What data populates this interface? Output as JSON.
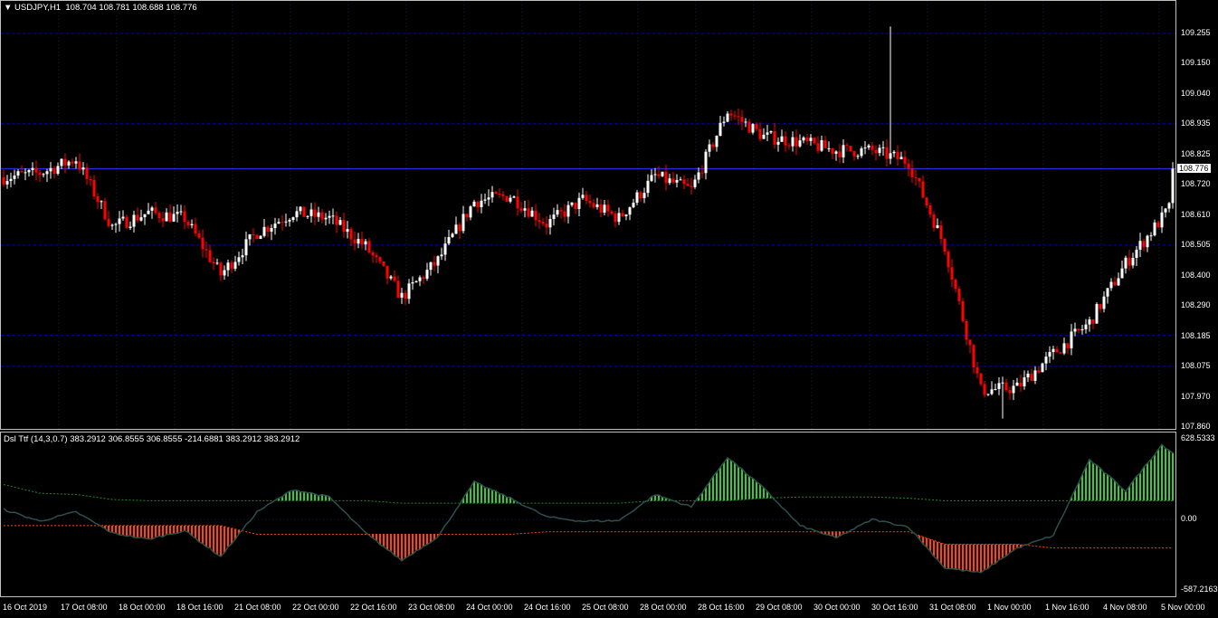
{
  "header": {
    "symbol": "USDJPY,H1",
    "ohlc": "108.704 108.781 108.688 108.776",
    "menu_icon": "triangle-down-icon"
  },
  "indicator": {
    "label": "Dsl Ttf (14,3,0.7) 383.2912 306.8555 306.8555 -214.6881 383.2912 383.2912"
  },
  "price_axis": [
    "109.255",
    "109.150",
    "109.040",
    "108.935",
    "108.825",
    "108.720",
    "108.610",
    "108.505",
    "108.400",
    "108.290",
    "108.185",
    "108.075",
    "107.970",
    "107.860"
  ],
  "current_price": "108.776",
  "indicator_axis": {
    "max": "628.5333",
    "zero": "0.00",
    "min": "-587.2163"
  },
  "time_axis": [
    "16 Oct 2019",
    "17 Oct 08:00",
    "18 Oct 00:00",
    "18 Oct 16:00",
    "21 Oct 08:00",
    "22 Oct 00:00",
    "22 Oct 16:00",
    "23 Oct 08:00",
    "24 Oct 00:00",
    "24 Oct 16:00",
    "25 Oct 08:00",
    "28 Oct 00:00",
    "28 Oct 16:00",
    "29 Oct 08:00",
    "30 Oct 00:00",
    "30 Oct 16:00",
    "31 Oct 08:00",
    "1 Nov 00:00",
    "1 Nov 16:00",
    "4 Nov 08:00",
    "5 Nov 00:00"
  ],
  "colors": {
    "bull": "#ffffff",
    "bear": "#ff0000",
    "grid": "#0000c8",
    "hist_up": "#32cd32",
    "hist_down": "#ff4500",
    "signal": "#2f4f4f",
    "level_up": "#228b22",
    "level_down": "#ff4500"
  },
  "chart_data": [
    {
      "type": "candlestick",
      "timeframe": "H1",
      "symbol": "USDJPY",
      "sample_every_bars": 10,
      "ylim": [
        107.86,
        109.255
      ],
      "close_samples": [
        108.745,
        108.76,
        108.81,
        108.57,
        108.62,
        108.6,
        108.4,
        108.55,
        108.62,
        108.6,
        108.5,
        108.32,
        108.45,
        108.66,
        108.68,
        108.58,
        108.665,
        108.6,
        108.75,
        108.7,
        108.98,
        108.89,
        108.87,
        108.84,
        108.84,
        108.8,
        108.5,
        107.99,
        108.0,
        108.12,
        108.23,
        108.44,
        108.6,
        108.776
      ],
      "spike_high": 109.28,
      "spike_low": 107.89
    },
    {
      "type": "line+histogram",
      "name": "Dsl Ttf (14,3,0.7)",
      "sample_every_bars": 10,
      "ylim": [
        -587.2163,
        628.5333
      ],
      "signal": [
        80,
        -15,
        60,
        -110,
        -160,
        -90,
        -300,
        60,
        240,
        180,
        -110,
        -330,
        -140,
        300,
        170,
        20,
        -15,
        -10,
        200,
        100,
        500,
        250,
        -50,
        -150,
        0,
        -60,
        -390,
        -430,
        -230,
        -130,
        480,
        230,
        600,
        383
      ],
      "upper_level": [
        280,
        210,
        200,
        160,
        150,
        150,
        150,
        150,
        150,
        150,
        150,
        130,
        130,
        130,
        130,
        130,
        130,
        130,
        150,
        150,
        150,
        170,
        180,
        180,
        180,
        170,
        150,
        150,
        150,
        150,
        150,
        150,
        150,
        150
      ],
      "lower_level": [
        -50,
        -50,
        -50,
        -50,
        -50,
        -50,
        -50,
        -120,
        -120,
        -120,
        -120,
        -120,
        -120,
        -120,
        -120,
        -100,
        -100,
        -100,
        -100,
        -100,
        -100,
        -100,
        -100,
        -100,
        -100,
        -100,
        -200,
        -200,
        -200,
        -230,
        -230,
        -230,
        -230,
        -230
      ]
    }
  ]
}
